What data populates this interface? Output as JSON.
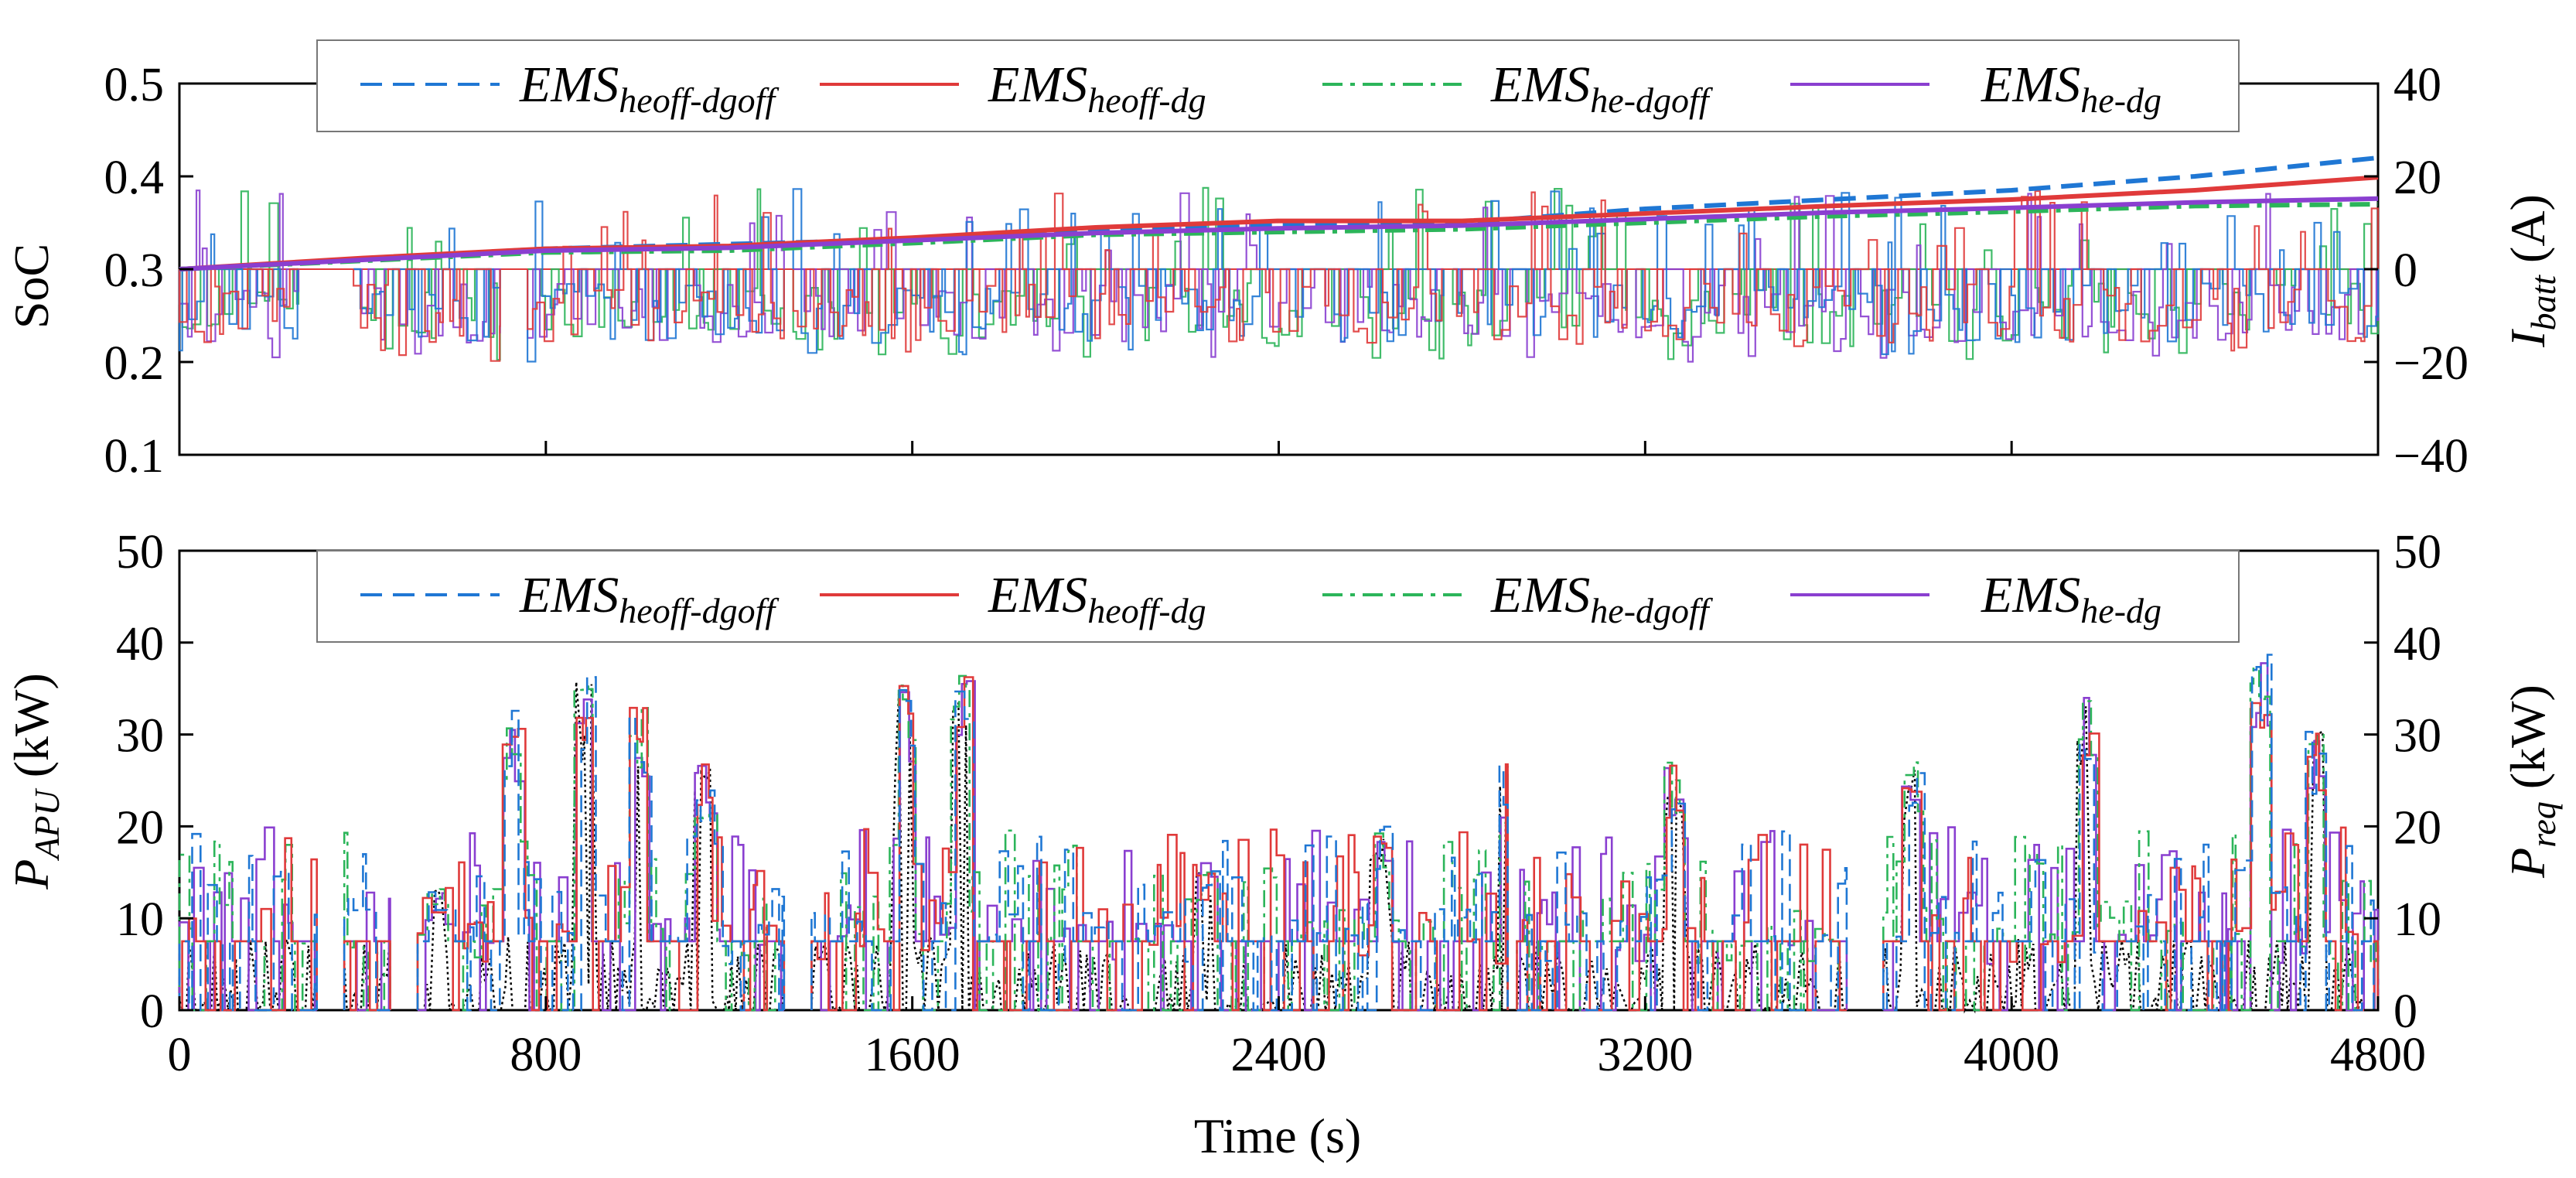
{
  "chart_data": [
    {
      "type": "line",
      "panel": "top",
      "xlabel": "",
      "ylabel": "SoC",
      "y2label_main": "I",
      "y2label_sub": "batt",
      "y2label_unit": " (A)",
      "xlim": [
        0,
        4800
      ],
      "ylim": [
        0.1,
        0.5
      ],
      "y2lim": [
        -40,
        40
      ],
      "yticks": [
        "0.1",
        "0.2",
        "0.3",
        "0.4",
        "0.5"
      ],
      "y2ticks": [
        "−40",
        "−20",
        "0",
        "20",
        "40"
      ],
      "legend": {
        "position": "top",
        "entries": [
          {
            "main": "EMS",
            "sub": "heoff-dgoff"
          },
          {
            "main": "EMS",
            "sub": "heoff-dg"
          },
          {
            "main": "EMS",
            "sub": "he-dgoff"
          },
          {
            "main": "EMS",
            "sub": "he-dg"
          }
        ]
      },
      "x": [
        0,
        400,
        800,
        1200,
        1600,
        2000,
        2400,
        2800,
        3200,
        3600,
        4000,
        4400,
        4800
      ],
      "series": [
        {
          "name": "EMS heoff-dgoff",
          "color": "#1f77d4",
          "dash": "dashed",
          "values": [
            0.3,
            0.311,
            0.322,
            0.327,
            0.332,
            0.342,
            0.348,
            0.35,
            0.365,
            0.375,
            0.385,
            0.4,
            0.42
          ]
        },
        {
          "name": "EMS heoff-dg",
          "color": "#e03a3a",
          "dash": "solid",
          "values": [
            0.3,
            0.312,
            0.322,
            0.325,
            0.334,
            0.345,
            0.352,
            0.352,
            0.36,
            0.368,
            0.375,
            0.385,
            0.399
          ]
        },
        {
          "name": "EMS he-dgoff",
          "color": "#2cb55a",
          "dash": "dashdot",
          "values": [
            0.3,
            0.309,
            0.318,
            0.32,
            0.328,
            0.337,
            0.34,
            0.343,
            0.35,
            0.357,
            0.362,
            0.368,
            0.37
          ]
        },
        {
          "name": "EMS he-dg",
          "color": "#8a3fd0",
          "dash": "solid",
          "values": [
            0.3,
            0.31,
            0.32,
            0.323,
            0.331,
            0.339,
            0.344,
            0.347,
            0.354,
            0.361,
            0.366,
            0.372,
            0.376
          ]
        }
      ],
      "current_traces": {
        "note": "dense battery current traces on right axis (A), mostly between -20 and +10 with spikes to +20",
        "range": [
          -20,
          20
        ]
      }
    },
    {
      "type": "line",
      "panel": "bottom",
      "xlabel": "Time (s)",
      "ylabel_main": "P",
      "ylabel_sub": "APU",
      "ylabel_unit": " (kW)",
      "y2label_main": "P",
      "y2label_sub": "req",
      "y2label_unit": " (kW)",
      "xlim": [
        0,
        4800
      ],
      "ylim": [
        0,
        50
      ],
      "y2lim": [
        0,
        50
      ],
      "xticks": [
        "0",
        "800",
        "1600",
        "2400",
        "3200",
        "4000",
        "4800"
      ],
      "yticks": [
        "0",
        "10",
        "20",
        "30",
        "40",
        "50"
      ],
      "y2ticks": [
        "0",
        "10",
        "20",
        "30",
        "40",
        "50"
      ],
      "legend": {
        "position": "top",
        "entries": [
          {
            "main": "EMS",
            "sub": "heoff-dgoff"
          },
          {
            "main": "EMS",
            "sub": "heoff-dg"
          },
          {
            "main": "EMS",
            "sub": "he-dgoff"
          },
          {
            "main": "EMS",
            "sub": "he-dg"
          }
        ]
      },
      "peaks": [
        {
          "t": 560,
          "p": 14
        },
        {
          "t": 720,
          "p": 33
        },
        {
          "t": 880,
          "p": 37
        },
        {
          "t": 1000,
          "p": 33
        },
        {
          "t": 1140,
          "p": 27
        },
        {
          "t": 1580,
          "p": 36
        },
        {
          "t": 1700,
          "p": 38
        },
        {
          "t": 2240,
          "p": 16
        },
        {
          "t": 2620,
          "p": 20
        },
        {
          "t": 2900,
          "p": 27
        },
        {
          "t": 3260,
          "p": 27
        },
        {
          "t": 3780,
          "p": 27
        },
        {
          "t": 4160,
          "p": 34
        },
        {
          "t": 4540,
          "p": 40
        },
        {
          "t": 4660,
          "p": 31
        }
      ],
      "series_names": [
        "EMS heoff-dgoff",
        "EMS heoff-dg",
        "EMS he-dgoff",
        "EMS he-dg",
        "P req"
      ]
    }
  ],
  "colors": {
    "heoff_dgoff": "#1f77d4",
    "heoff_dg": "#e03a3a",
    "he_dgoff": "#2cb55a",
    "he_dg": "#8a3fd0",
    "preq": "#000000"
  }
}
